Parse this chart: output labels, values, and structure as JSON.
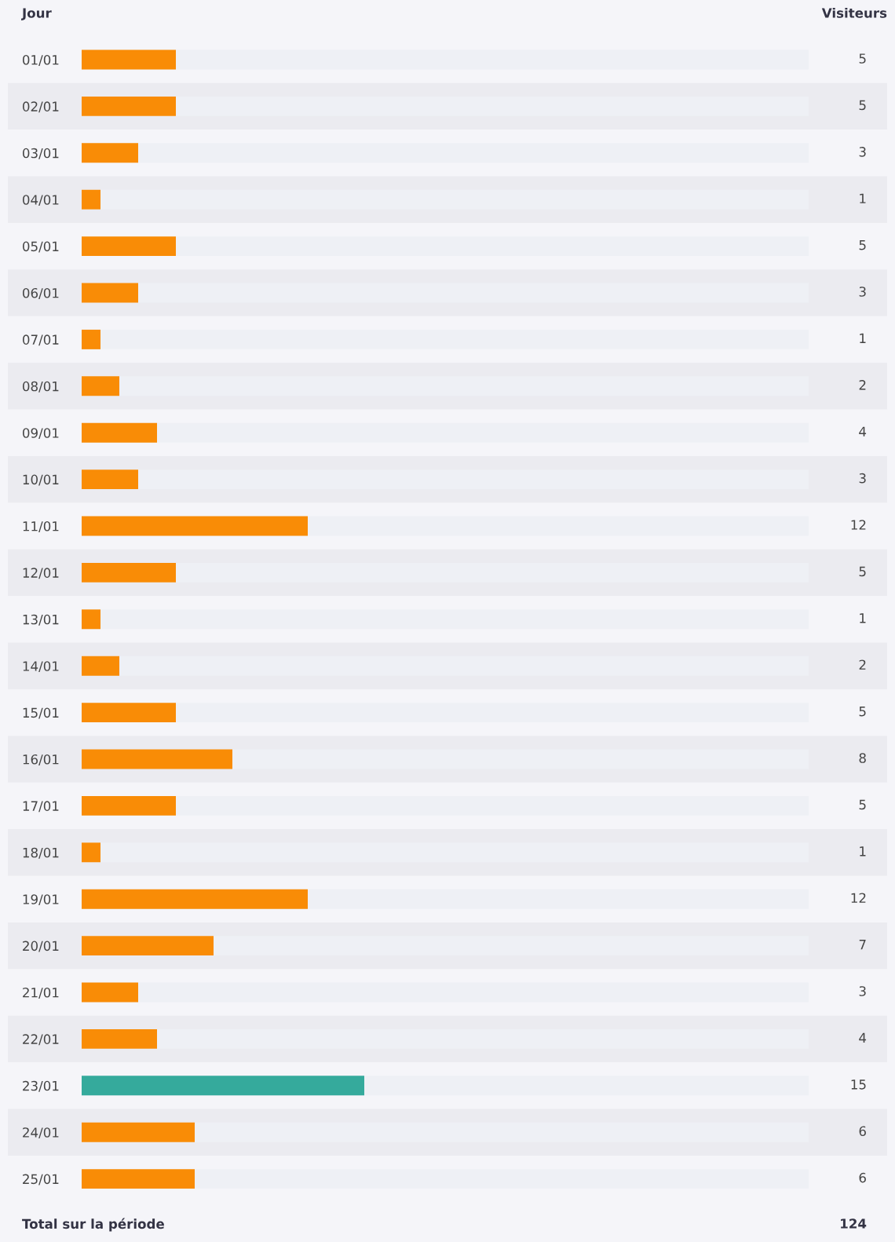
{
  "chart_data": {
    "type": "bar",
    "orientation": "horizontal",
    "categories": [
      "01/01",
      "02/01",
      "03/01",
      "04/01",
      "05/01",
      "06/01",
      "07/01",
      "08/01",
      "09/01",
      "10/01",
      "11/01",
      "12/01",
      "13/01",
      "14/01",
      "15/01",
      "16/01",
      "17/01",
      "18/01",
      "19/01",
      "20/01",
      "21/01",
      "22/01",
      "23/01",
      "24/01",
      "25/01"
    ],
    "values": [
      5,
      5,
      3,
      1,
      5,
      3,
      1,
      2,
      4,
      3,
      12,
      5,
      1,
      2,
      5,
      8,
      5,
      1,
      12,
      7,
      3,
      4,
      15,
      6,
      6
    ],
    "colors": [
      "#f98c06",
      "#f98c06",
      "#f98c06",
      "#f98c06",
      "#f98c06",
      "#f98c06",
      "#f98c06",
      "#f98c06",
      "#f98c06",
      "#f98c06",
      "#f98c06",
      "#f98c06",
      "#f98c06",
      "#f98c06",
      "#f98c06",
      "#f98c06",
      "#f98c06",
      "#f98c06",
      "#f98c06",
      "#f98c06",
      "#f98c06",
      "#f98c06",
      "#35aa9c",
      "#f98c06",
      "#f98c06"
    ],
    "data_labels": true,
    "grid": false,
    "legend": false,
    "annotations": [
      "Jour",
      "Visiteurs",
      "Total sur la période",
      "124"
    ]
  }
}
